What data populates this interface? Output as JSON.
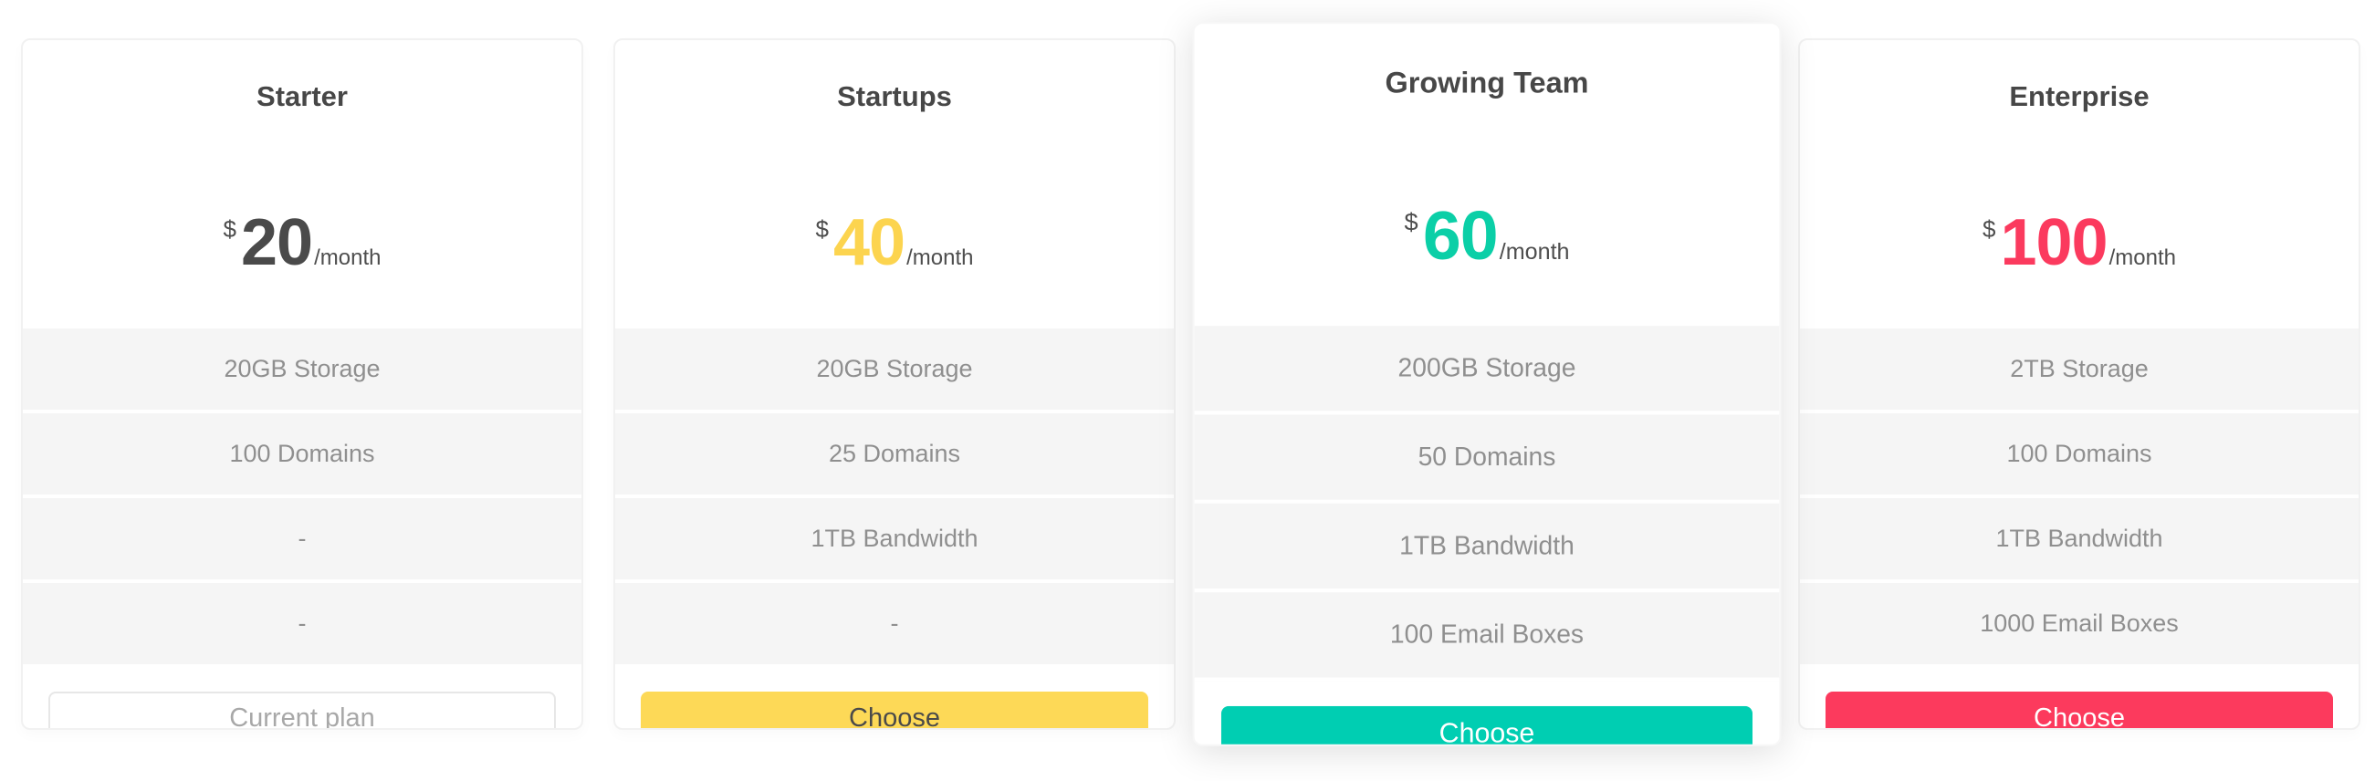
{
  "page": {
    "background": "#ffffff",
    "card_border_color": "#f1f1f1",
    "feature_row_background": "#f5f5f5",
    "title_color": "#474747",
    "feature_text_color": "#8f8f8f"
  },
  "plans": [
    {
      "name": "Starter",
      "currency": "$",
      "amount": "20",
      "period": "/month",
      "accent": "#4a4a4a",
      "featured": false,
      "features": [
        "20GB Storage",
        "100 Domains",
        "-",
        "-"
      ],
      "button": {
        "label": "Current plan",
        "bg": "#ffffff",
        "text": "#a8a8a8",
        "border": "#e7e7e7"
      }
    },
    {
      "name": "Startups",
      "currency": "$",
      "amount": "40",
      "period": "/month",
      "accent": "#fcd44f",
      "featured": false,
      "features": [
        "20GB Storage",
        "25 Domains",
        "1TB Bandwidth",
        "-"
      ],
      "button": {
        "label": "Choose",
        "bg": "#fdd957",
        "text": "#4a4a4a",
        "border": "transparent"
      }
    },
    {
      "name": "Growing Team",
      "currency": "$",
      "amount": "60",
      "period": "/month",
      "accent": "#0bcfa7",
      "featured": true,
      "features": [
        "200GB Storage",
        "50 Domains",
        "1TB Bandwidth",
        "100 Email Boxes"
      ],
      "button": {
        "label": "Choose",
        "bg": "#00ceb2",
        "text": "#ffffff",
        "border": "transparent"
      }
    },
    {
      "name": "Enterprise",
      "currency": "$",
      "amount": "100",
      "period": "/month",
      "accent": "#fb3a5e",
      "featured": false,
      "features": [
        "2TB Storage",
        "100 Domains",
        "1TB Bandwidth",
        "1000 Email Boxes"
      ],
      "button": {
        "label": "Choose",
        "bg": "#fc3a5d",
        "text": "#ffffff",
        "border": "transparent"
      }
    }
  ]
}
